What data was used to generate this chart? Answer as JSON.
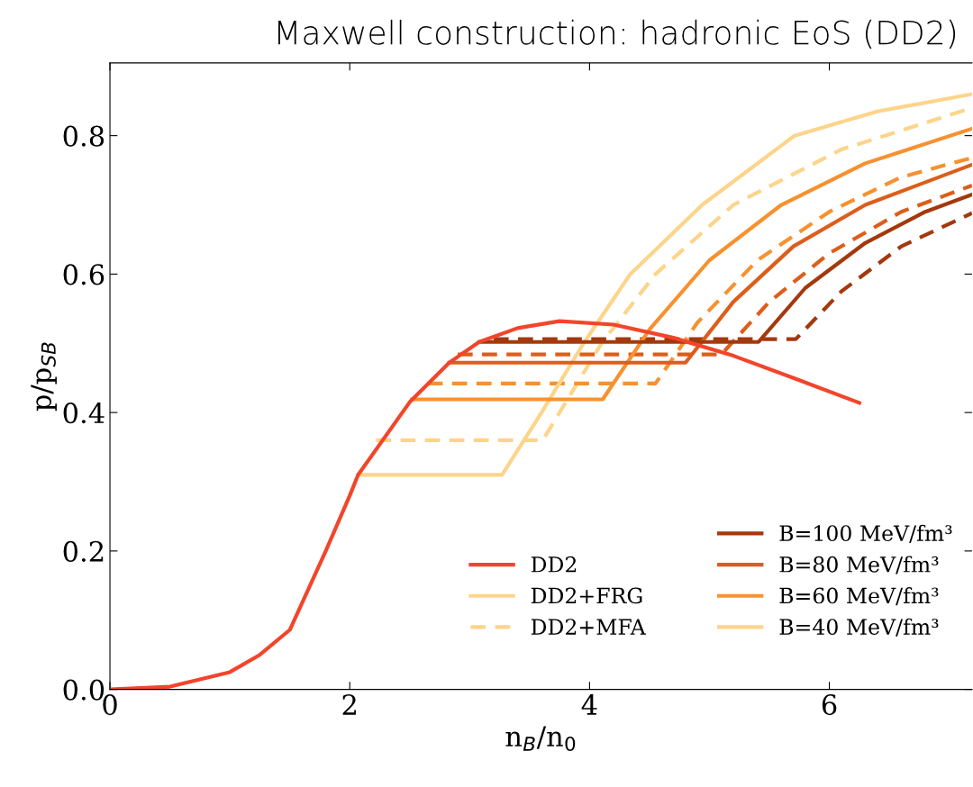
{
  "chart_data": {
    "type": "line",
    "title": "Maxwell construction: hadronic EoS (DD2)",
    "xlabel": "n$_{B}$/n$_{0}$",
    "ylabel": "p/p$_{SB}$",
    "xlim": [
      0,
      7.19
    ],
    "ylim": [
      0,
      0.905
    ],
    "xticks": [
      0,
      2,
      4,
      6
    ],
    "yticks": [
      {
        "value": 0,
        "label": "0.0"
      },
      0.2,
      0.4,
      0.6,
      0.8
    ],
    "grid": false,
    "legend": "bottom right",
    "marker": "none",
    "annotations": [
      "DD2+FRG"
    ],
    "series": [
      {
        "name": "DD2",
        "color": "#f2452b",
        "line_style": "solid",
        "x": [
          0,
          0.5,
          1.0,
          1.25,
          1.5,
          1.8,
          2.0,
          2.07,
          2.5,
          2.83,
          3.08,
          3.4,
          3.75,
          4.2,
          4.7,
          5.2,
          5.7,
          6.25
        ],
        "values": [
          0,
          0.004,
          0.025,
          0.05,
          0.086,
          0.2,
          0.28,
          0.31,
          0.415,
          0.472,
          0.502,
          0.522,
          0.532,
          0.527,
          0.508,
          0.482,
          0.45,
          0.414
        ]
      },
      {
        "name": "B=100 MeV/fm³",
        "color": "#a3390d",
        "line_style": "solid",
        "x": [
          3.08,
          5.41,
          5.8,
          6.3,
          6.8,
          7.19
        ],
        "values": [
          0.502,
          0.502,
          0.58,
          0.645,
          0.69,
          0.715
        ]
      },
      {
        "name": "B=80 MeV/fm³",
        "color": "#dc5e1b",
        "line_style": "solid",
        "x": [
          2.83,
          4.8,
          5.2,
          5.7,
          6.3,
          7.19
        ],
        "values": [
          0.472,
          0.472,
          0.56,
          0.64,
          0.7,
          0.758
        ]
      },
      {
        "name": "B=60 MeV/fm³",
        "color": "#f7912f",
        "line_style": "solid",
        "x": [
          2.52,
          4.11,
          4.5,
          5.0,
          5.6,
          6.3,
          7.19
        ],
        "values": [
          0.419,
          0.419,
          0.52,
          0.62,
          0.7,
          0.76,
          0.81
        ]
      },
      {
        "name": "B=40 MeV/fm³",
        "color": "#fdd48a",
        "line_style": "solid",
        "x": [
          2.07,
          3.27,
          3.6,
          3.95,
          4.34,
          4.94,
          5.71,
          6.4,
          7.19
        ],
        "values": [
          0.31,
          0.31,
          0.4,
          0.5,
          0.6,
          0.7,
          0.8,
          0.835,
          0.86
        ]
      },
      {
        "color": "#a3390d",
        "line_style": "dashed",
        "x": [
          3.2,
          5.72,
          6.1,
          6.6,
          7.19
        ],
        "values": [
          0.506,
          0.506,
          0.575,
          0.64,
          0.688
        ]
      },
      {
        "color": "#dc5e1b",
        "line_style": "dashed",
        "x": [
          2.9,
          5.1,
          5.5,
          6.0,
          6.6,
          7.19
        ],
        "values": [
          0.484,
          0.484,
          0.56,
          0.63,
          0.69,
          0.728
        ]
      },
      {
        "color": "#f7912f",
        "line_style": "dashed",
        "x": [
          2.65,
          4.55,
          4.9,
          5.4,
          6.0,
          6.6,
          7.19
        ],
        "values": [
          0.442,
          0.442,
          0.53,
          0.62,
          0.69,
          0.74,
          0.768
        ]
      },
      {
        "name": "DD2+MFA",
        "color": "#fdd48a",
        "line_style": "dashed",
        "x": [
          2.22,
          3.61,
          4.1,
          4.55,
          5.2,
          6.1,
          7.19
        ],
        "values": [
          0.36,
          0.36,
          0.5,
          0.6,
          0.7,
          0.78,
          0.84
        ]
      }
    ]
  }
}
